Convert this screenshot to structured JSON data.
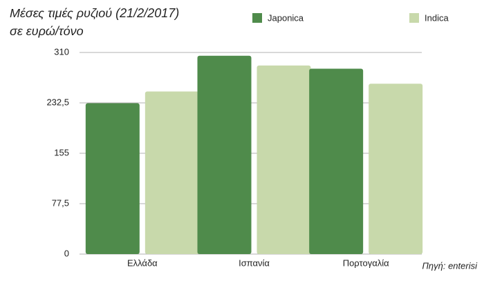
{
  "chart_data": {
    "type": "bar",
    "title": "Μέσες τιμές ρυζιού (21/2/2017)",
    "subtitle": "σε ευρώ/τόνο",
    "source": "Πηγή: enterisi",
    "categories": [
      "Ελλάδα",
      "Ισπανία",
      "Πορτογαλία"
    ],
    "series": [
      {
        "name": "Japonica",
        "color": "#4f8b4b",
        "values": [
          232,
          305,
          285
        ]
      },
      {
        "name": "Indica",
        "color": "#c8d9ab",
        "values": [
          250,
          290,
          262
        ]
      }
    ],
    "ylim": [
      0,
      310
    ],
    "yticks": [
      0,
      {
        "value": 77.5,
        "label": "77,5"
      },
      155,
      {
        "value": 232.5,
        "label": "232,5"
      },
      310
    ],
    "grid": true
  }
}
